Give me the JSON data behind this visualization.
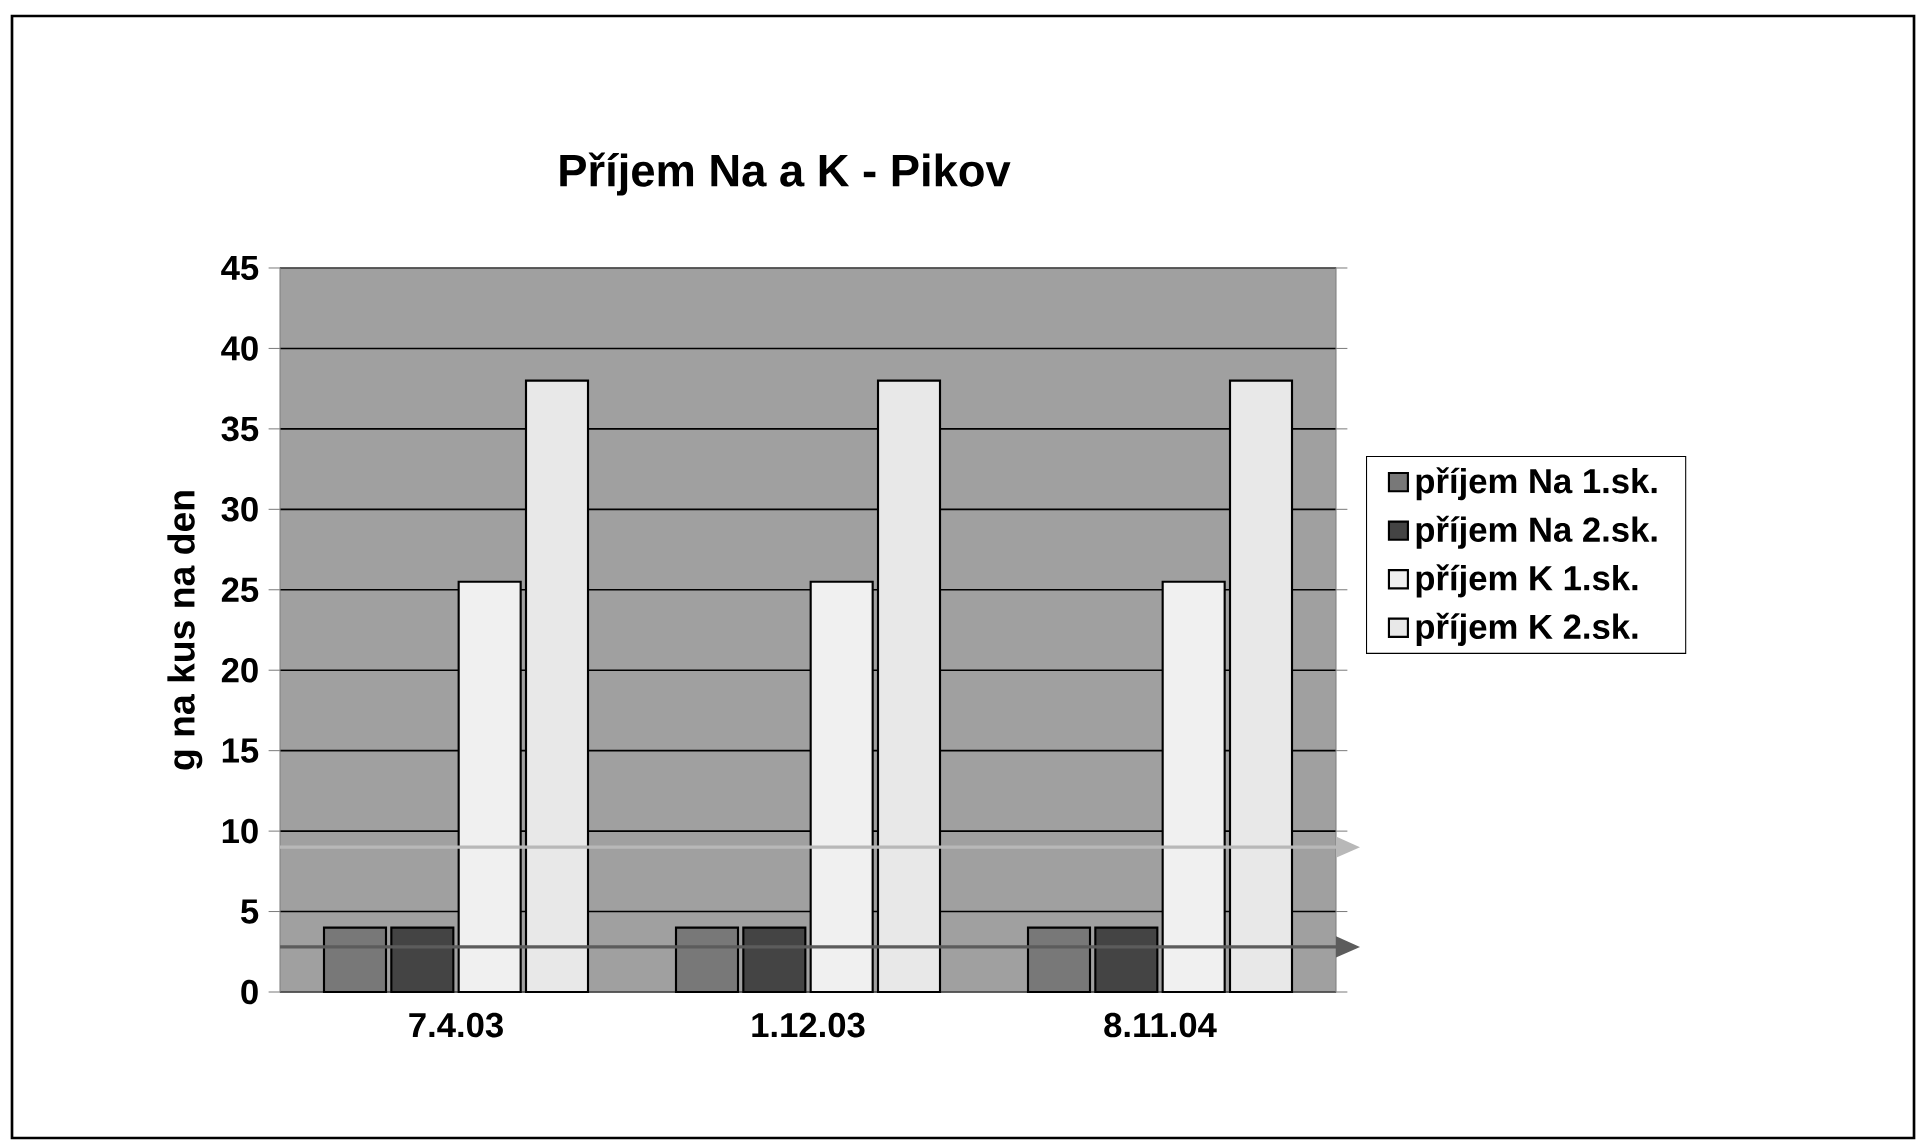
{
  "chart_data": {
    "type": "bar",
    "title": "Příjem Na a K - Pikov",
    "ylabel": "g na kus na den",
    "categories": [
      "7.4.03",
      "1.12.03",
      "8.11.04"
    ],
    "series": [
      {
        "name": "příjem Na 1.sk.",
        "color": "#787878",
        "values": [
          4,
          4,
          4
        ]
      },
      {
        "name": "příjem Na 2.sk.",
        "color": "#444444",
        "values": [
          4,
          4,
          4
        ]
      },
      {
        "name": "příjem K 1.sk.",
        "color": "#f0f0f0",
        "values": [
          25.5,
          25.5,
          25.5
        ]
      },
      {
        "name": "příjem K 2.sk.",
        "color": "#e8e8e8",
        "values": [
          38,
          38,
          38
        ]
      }
    ],
    "ylim": [
      0,
      45
    ],
    "yticks": [
      0,
      5,
      10,
      15,
      20,
      25,
      30,
      35,
      40,
      45
    ],
    "grid": "y",
    "legend": "right",
    "ref_lines": [
      {
        "axis": "y",
        "value": 9,
        "color": "#b8b8b8"
      },
      {
        "axis": "y",
        "value": 2.8,
        "color": "#5c5c5c"
      }
    ]
  }
}
